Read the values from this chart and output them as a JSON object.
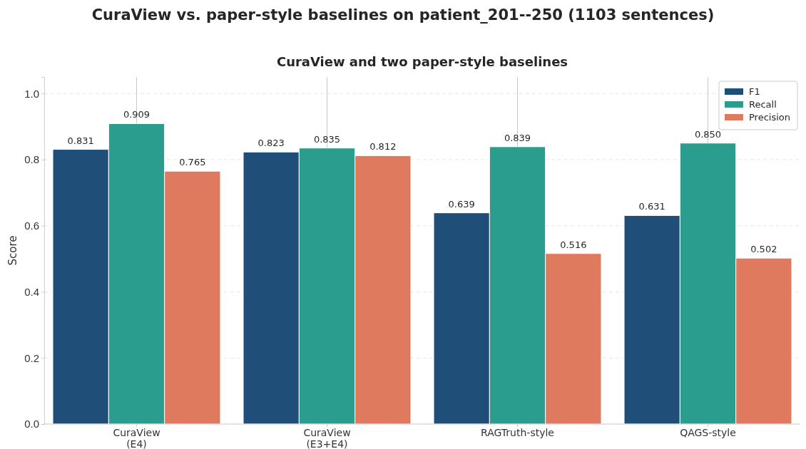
{
  "chart_data": {
    "type": "bar",
    "title": "CuraView vs. paper-style baselines on patient_201--250 (1103 sentences)",
    "subtitle": "CuraView and two paper-style baselines",
    "ylabel": "Score",
    "categories": [
      "CuraView\n(E4)",
      "CuraView\n(E3+E4)",
      "RAGTruth-style",
      "QAGS-style"
    ],
    "series": [
      {
        "name": "F1",
        "color": "#1f4e79",
        "values": [
          0.831,
          0.823,
          0.639,
          0.631
        ],
        "value_labels": [
          "0.831",
          "0.823",
          "0.639",
          "0.631"
        ]
      },
      {
        "name": "Recall",
        "color": "#2a9d8f",
        "values": [
          0.909,
          0.835,
          0.839,
          0.85
        ],
        "value_labels": [
          "0.909",
          "0.835",
          "0.839",
          "0.850"
        ]
      },
      {
        "name": "Precision",
        "color": "#e07a5f",
        "values": [
          0.765,
          0.812,
          0.516,
          0.502
        ],
        "value_labels": [
          "0.765",
          "0.812",
          "0.516",
          "0.502"
        ]
      }
    ],
    "ylim": [
      0,
      1.05
    ],
    "yticks": [
      {
        "value": 0,
        "label": "0.0"
      },
      {
        "value": 0.2,
        "label": "0.2"
      },
      {
        "value": 0.4,
        "label": "0.4"
      },
      {
        "value": 0.6,
        "label": "0.6"
      },
      {
        "value": 0.8,
        "label": "0.8"
      },
      {
        "value": 1,
        "label": "1.0"
      }
    ],
    "grid": true,
    "legend": "top right"
  }
}
